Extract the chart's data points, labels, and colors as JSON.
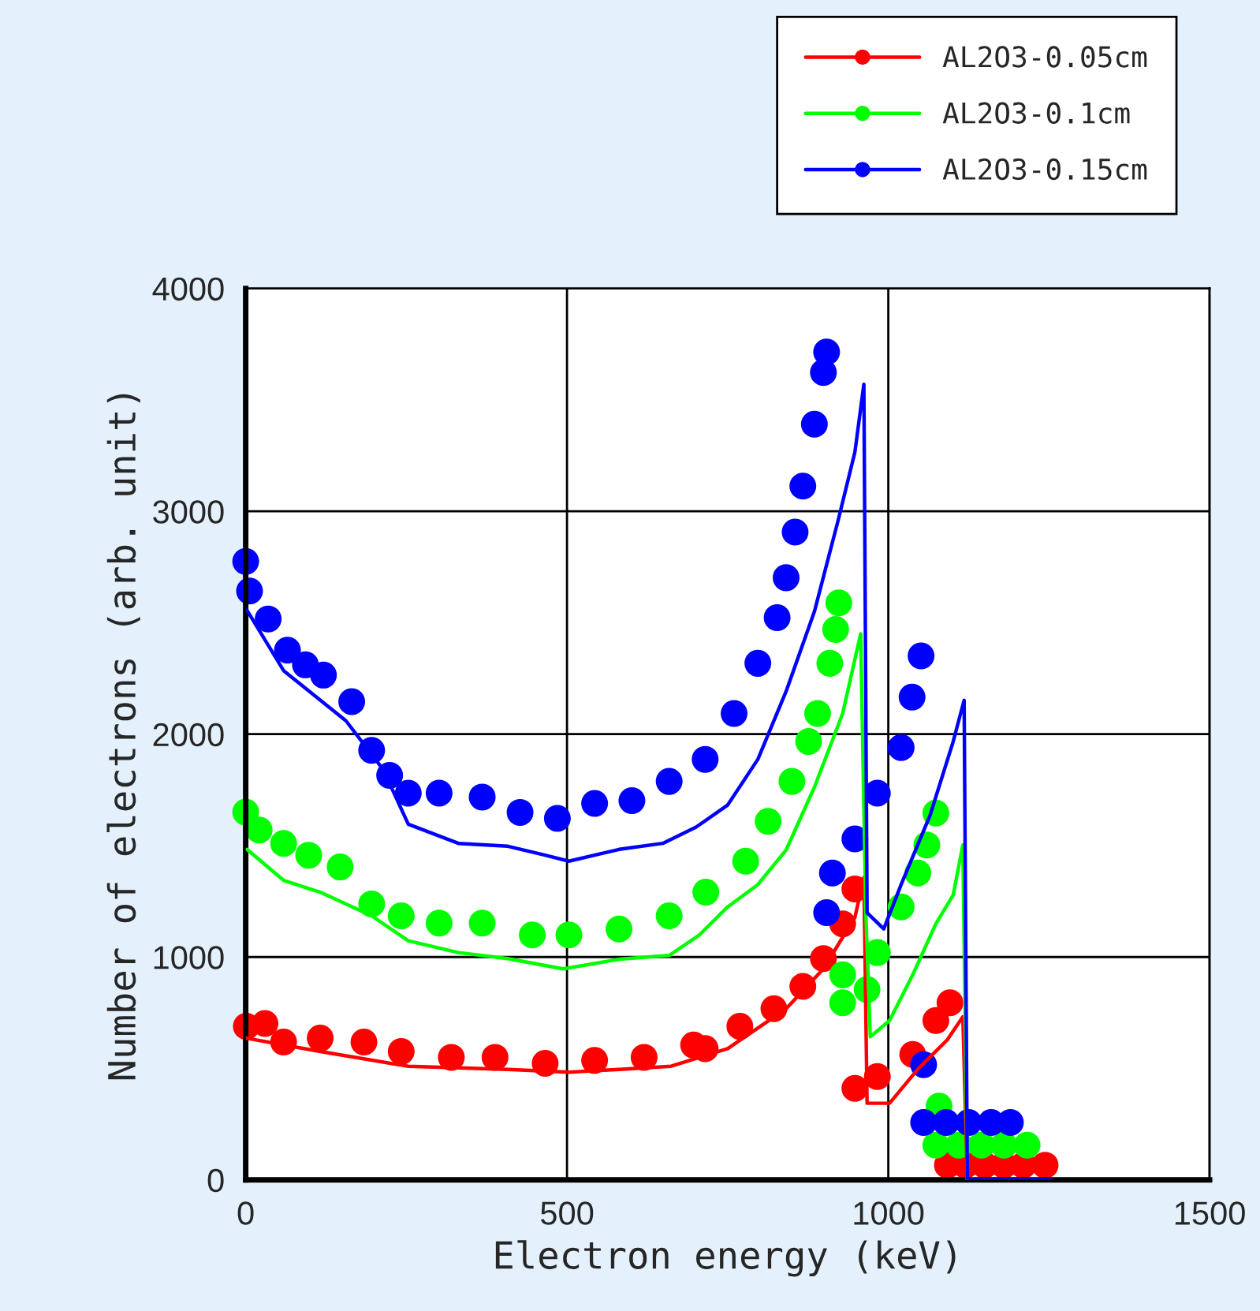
{
  "chart_data": {
    "type": "line",
    "xlabel": "Electron energy (keV)",
    "ylabel": "Number of electrons (arb. unit)",
    "xlim": [
      0,
      1500
    ],
    "xticks": [
      0,
      500,
      1000,
      1500
    ],
    "ylim": [
      0,
      4000
    ],
    "yticks": [
      0,
      1000,
      2000,
      3000,
      4000
    ],
    "grid": true,
    "legend": "top right",
    "series": [
      {
        "name": "AL2O3-0.05cm",
        "type": "scatter",
        "marker": "circle",
        "color": "#ff0000",
        "x": [
          1,
          30,
          59,
          116,
          184,
          242,
          320,
          388,
          466,
          543,
          620,
          697,
          715,
          769,
          822,
          867,
          899,
          929,
          948,
          948,
          983,
          1038,
          1074,
          1096,
          1092,
          1120,
          1150,
          1180,
          1210,
          1244
        ],
        "values": [
          689,
          702,
          619,
          636,
          619,
          576,
          550,
          550,
          523,
          536,
          550,
          605,
          589,
          689,
          768,
          868,
          993,
          1149,
          1305,
          411,
          464,
          563,
          715,
          795,
          66,
          66,
          66,
          66,
          66,
          66
        ]
      },
      {
        "name": "AL2O3-0.1cm",
        "type": "scatter",
        "marker": "circle",
        "color": "#00ff00",
        "x": [
          0,
          21,
          59,
          98,
          147,
          196,
          242,
          301,
          368,
          446,
          503,
          581,
          659,
          716,
          778,
          813,
          850,
          876,
          890,
          909,
          918,
          923,
          929,
          929,
          967,
          983,
          1020,
          1046,
          1060,
          1074,
          1079,
          1074,
          1110,
          1145,
          1180,
          1216
        ],
        "values": [
          1650,
          1570,
          1510,
          1457,
          1404,
          1238,
          1185,
          1152,
          1152,
          1099,
          1099,
          1126,
          1185,
          1291,
          1430,
          1609,
          1788,
          1967,
          2093,
          2318,
          2470,
          2589,
          795,
          920,
          854,
          1020,
          1225,
          1377,
          1503,
          1646,
          331,
          156,
          156,
          156,
          156,
          156
        ]
      },
      {
        "name": "AL2O3-0.15cm",
        "type": "scatter",
        "marker": "circle",
        "color": "#0000ff",
        "x": [
          0,
          6,
          35,
          65,
          93,
          121,
          165,
          196,
          224,
          253,
          301,
          368,
          427,
          485,
          543,
          601,
          659,
          715,
          760,
          797,
          827,
          841,
          855,
          867,
          885,
          899,
          904,
          904,
          913,
          948,
          983,
          1020,
          1037,
          1051,
          1055,
          1055,
          1090,
          1125,
          1160,
          1190
        ],
        "values": [
          2775,
          2642,
          2517,
          2377,
          2311,
          2265,
          2146,
          1927,
          1815,
          1735,
          1735,
          1718,
          1649,
          1622,
          1689,
          1702,
          1788,
          1887,
          2093,
          2318,
          2523,
          2702,
          2907,
          3113,
          3391,
          3623,
          3715,
          1199,
          1377,
          1530,
          1735,
          1940,
          2166,
          2351,
          517,
          258,
          258,
          258,
          258,
          258
        ]
      },
      {
        "color": "#ff0000",
        "x": [
          1,
          116,
          253,
          408,
          503,
          581,
          662,
          750,
          841,
          899,
          948,
          962,
          967,
          1002,
          1046,
          1092,
          1116,
          1123
        ],
        "values": [
          636,
          576,
          510,
          496,
          483,
          496,
          510,
          589,
          768,
          947,
          1178,
          1357,
          344,
          344,
          497,
          629,
          732,
          0
        ]
      },
      {
        "color": "#00ff00",
        "x": [
          2,
          59,
          116,
          196,
          253,
          331,
          408,
          494,
          581,
          659,
          706,
          750,
          797,
          841,
          885,
          929,
          957,
          965,
          972,
          1002,
          1038,
          1074,
          1101,
          1116,
          1123
        ],
        "values": [
          1483,
          1344,
          1291,
          1185,
          1073,
          1020,
          993,
          947,
          990,
          1007,
          1099,
          1225,
          1325,
          1480,
          1762,
          2093,
          2450,
          1199,
          642,
          715,
          920,
          1149,
          1278,
          1503,
          0
        ]
      },
      {
        "color": "#0000ff",
        "x": [
          2,
          59,
          156,
          214,
          253,
          331,
          408,
          466,
          503,
          581,
          649,
          701,
          750,
          797,
          841,
          885,
          922,
          948,
          962,
          967,
          993,
          1020,
          1065,
          1101,
          1118,
          1123,
          1254
        ],
        "values": [
          2556,
          2285,
          2060,
          1841,
          1596,
          1510,
          1497,
          1457,
          1430,
          1483,
          1510,
          1583,
          1682,
          1887,
          2192,
          2550,
          2960,
          3265,
          3570,
          1199,
          1126,
          1325,
          1636,
          1967,
          2152,
          0,
          0
        ]
      }
    ]
  }
}
